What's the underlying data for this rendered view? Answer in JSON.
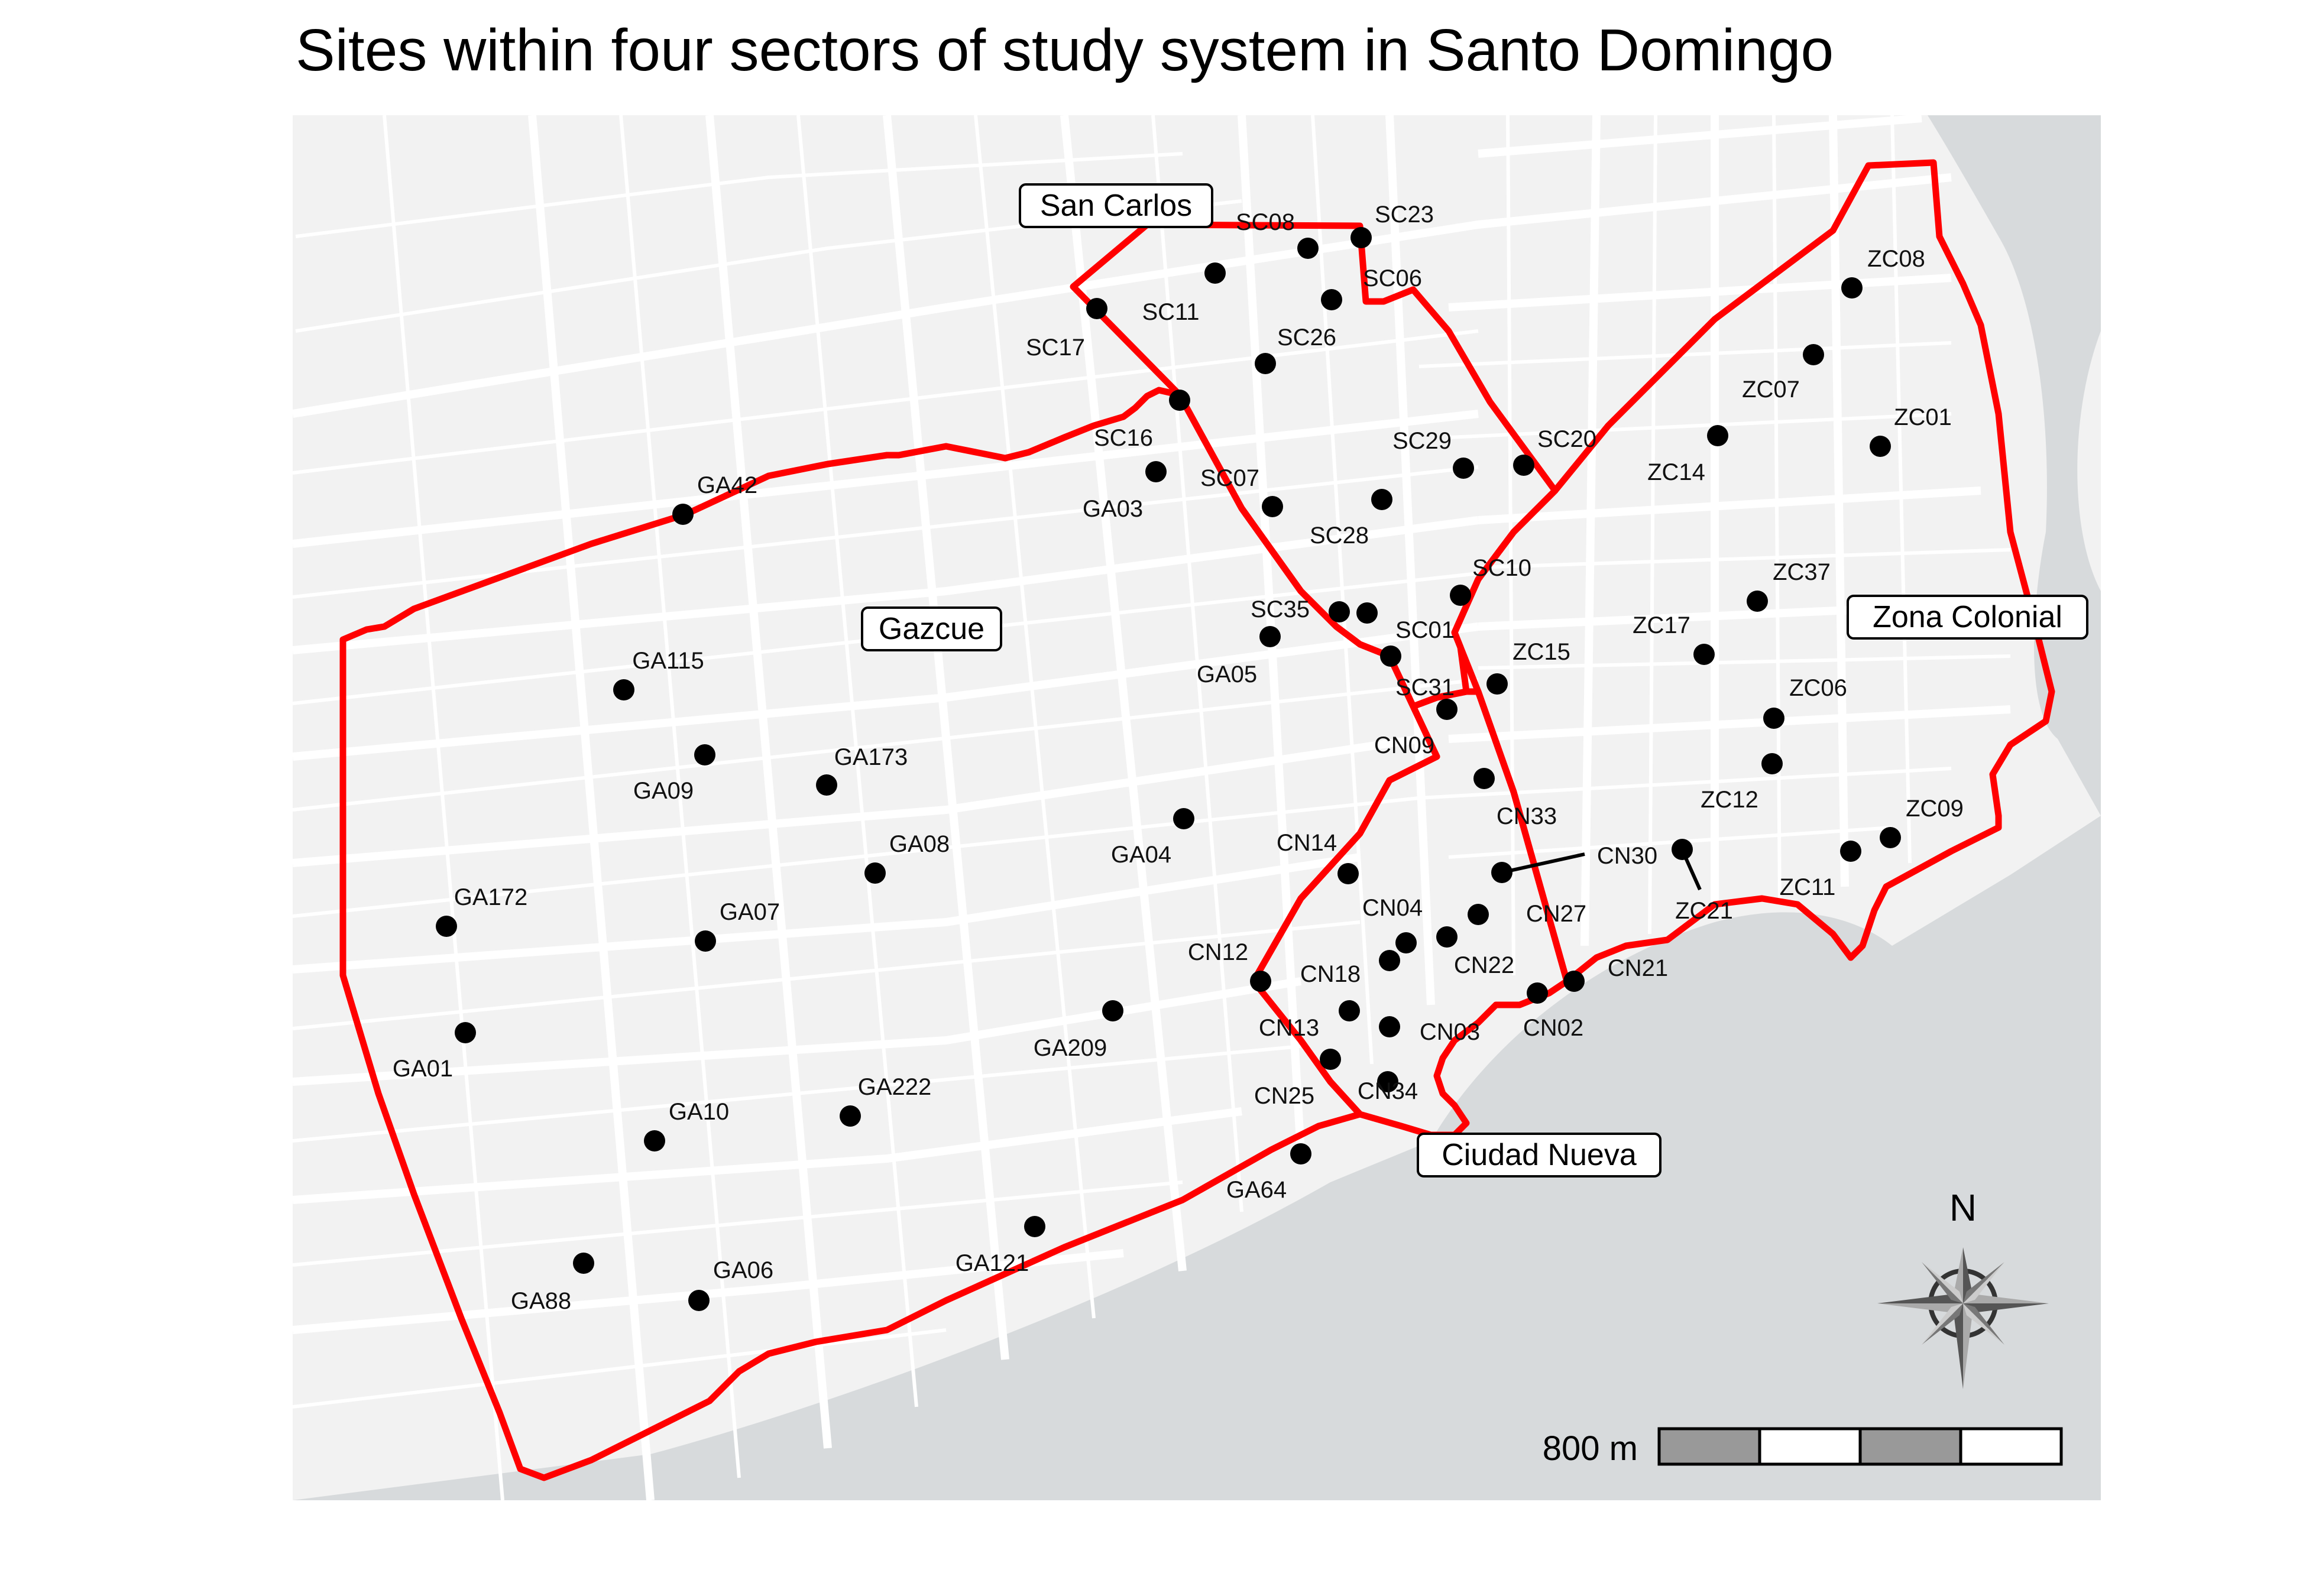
{
  "title": "Sites within four sectors of study system in Santo Domingo",
  "colors": {
    "boundary": "#ff0000",
    "land": "#f2f2f2",
    "water": "#d7dadc",
    "road": "#ffffff",
    "site": "#000000"
  },
  "sectors": [
    {
      "key": "san-carlos",
      "label": "San Carlos"
    },
    {
      "key": "gazcue",
      "label": "Gazcue"
    },
    {
      "key": "zona-colonial",
      "label": "Zona Colonial"
    },
    {
      "key": "ciudad-nueva",
      "label": "Ciudad Nueva"
    }
  ],
  "sites": [
    {
      "id": "SC08",
      "label": "SC08"
    },
    {
      "id": "SC23",
      "label": "SC23"
    },
    {
      "id": "SC11",
      "label": "SC11"
    },
    {
      "id": "SC06",
      "label": "SC06"
    },
    {
      "id": "SC17",
      "label": "SC17"
    },
    {
      "id": "SC26",
      "label": "SC26"
    },
    {
      "id": "SC16",
      "label": "SC16"
    },
    {
      "id": "SC29",
      "label": "SC29"
    },
    {
      "id": "SC20",
      "label": "SC20"
    },
    {
      "id": "SC07",
      "label": "SC07"
    },
    {
      "id": "GA03",
      "label": "GA03"
    },
    {
      "id": "SC28",
      "label": "SC28"
    },
    {
      "id": "SC10",
      "label": "SC10"
    },
    {
      "id": "SC35",
      "label": "SC35"
    },
    {
      "id": "SC01",
      "label": "SC01"
    },
    {
      "id": "GA05",
      "label": "GA05"
    },
    {
      "id": "SC31",
      "label": "SC31"
    },
    {
      "id": "GA42",
      "label": "GA42"
    },
    {
      "id": "GA115",
      "label": "GA115"
    },
    {
      "id": "GA09",
      "label": "GA09"
    },
    {
      "id": "GA173",
      "label": "GA173"
    },
    {
      "id": "GA08",
      "label": "GA08"
    },
    {
      "id": "GA04",
      "label": "GA04"
    },
    {
      "id": "GA172",
      "label": "GA172"
    },
    {
      "id": "GA07",
      "label": "GA07"
    },
    {
      "id": "GA01",
      "label": "GA01"
    },
    {
      "id": "GA209",
      "label": "GA209"
    },
    {
      "id": "GA10",
      "label": "GA10"
    },
    {
      "id": "GA222",
      "label": "GA222"
    },
    {
      "id": "GA64",
      "label": "GA64"
    },
    {
      "id": "GA88",
      "label": "GA88"
    },
    {
      "id": "GA06",
      "label": "GA06"
    },
    {
      "id": "GA121",
      "label": "GA121"
    },
    {
      "id": "ZC08",
      "label": "ZC08"
    },
    {
      "id": "ZC07",
      "label": "ZC07"
    },
    {
      "id": "ZC01",
      "label": "ZC01"
    },
    {
      "id": "ZC14",
      "label": "ZC14"
    },
    {
      "id": "ZC37",
      "label": "ZC37"
    },
    {
      "id": "ZC17",
      "label": "ZC17"
    },
    {
      "id": "ZC15",
      "label": "ZC15"
    },
    {
      "id": "ZC06",
      "label": "ZC06"
    },
    {
      "id": "ZC12",
      "label": "ZC12"
    },
    {
      "id": "ZC09",
      "label": "ZC09"
    },
    {
      "id": "ZC11",
      "label": "ZC11"
    },
    {
      "id": "ZC21",
      "label": "ZC21"
    },
    {
      "id": "CN09",
      "label": "CN09"
    },
    {
      "id": "CN33",
      "label": "CN33"
    },
    {
      "id": "CN14",
      "label": "CN14"
    },
    {
      "id": "CN30",
      "label": "CN30"
    },
    {
      "id": "CN04",
      "label": "CN04"
    },
    {
      "id": "CN27",
      "label": "CN27"
    },
    {
      "id": "CN12",
      "label": "CN12"
    },
    {
      "id": "CN18",
      "label": "CN18"
    },
    {
      "id": "CN22",
      "label": "CN22"
    },
    {
      "id": "CN21",
      "label": "CN21"
    },
    {
      "id": "CN13",
      "label": "CN13"
    },
    {
      "id": "CN03",
      "label": "CN03"
    },
    {
      "id": "CN02",
      "label": "CN02"
    },
    {
      "id": "CN25",
      "label": "CN25"
    },
    {
      "id": "CN34",
      "label": "CN34"
    }
  ],
  "north_arrow": {
    "label": "N",
    "icon": "compass-rose-icon"
  },
  "scale_bar": {
    "label": "800 m",
    "segments": 4
  }
}
